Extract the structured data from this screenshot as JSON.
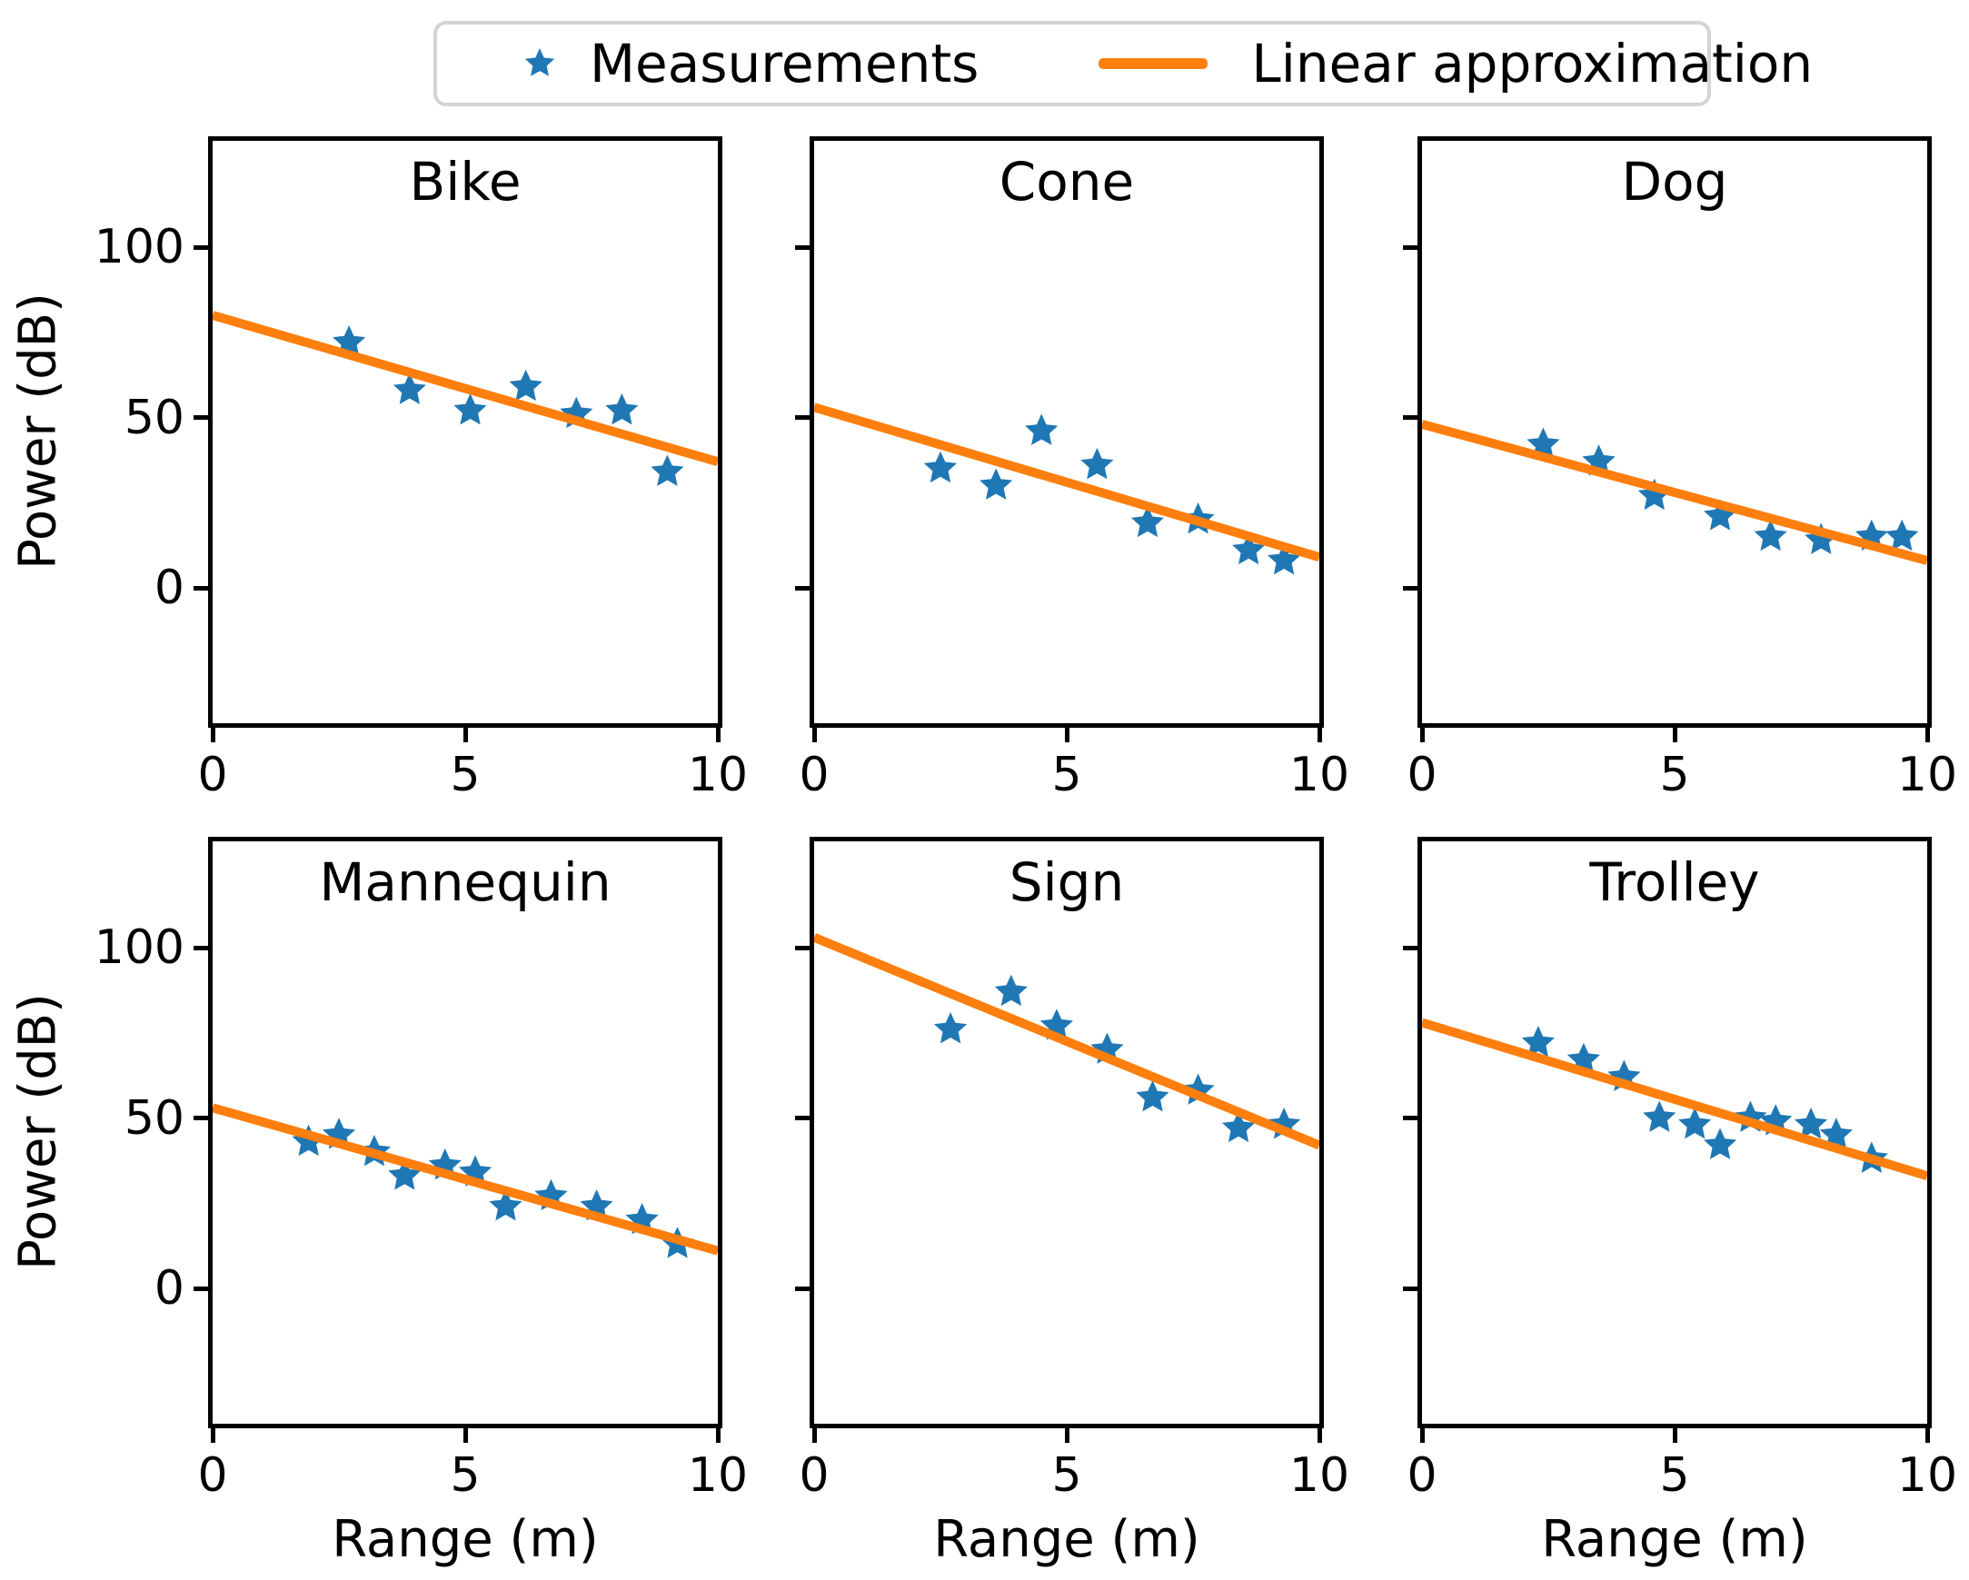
{
  "figure": {
    "background": "#ffffff",
    "colors": {
      "measurements": "#1f77b4",
      "fit_line": "#ff7f0e",
      "legend_border": "#d4d4d4",
      "axis": "#000000"
    },
    "legend": {
      "items": [
        {
          "label": "Measurements",
          "marker": "star-icon",
          "color": "#1f77b4"
        },
        {
          "label": "Linear approximation",
          "marker": "line-icon",
          "color": "#ff7f0e"
        }
      ]
    },
    "axes": {
      "xlabel": "Range (m)",
      "ylabel": "Power (dB)",
      "x_ticks": [
        0,
        5,
        10
      ],
      "y_ticks": [
        100,
        50,
        0
      ],
      "xlim": [
        0,
        10
      ],
      "ylim": [
        -40,
        131
      ],
      "grid": false,
      "legend_position": "top-center"
    }
  },
  "chart_data": [
    {
      "type": "scatter",
      "title": "Bike",
      "xlabel": "Range (m)",
      "ylabel": "Power (dB)",
      "series": [
        {
          "name": "Measurements",
          "x": [
            2.7,
            3.9,
            5.1,
            6.2,
            7.2,
            8.1,
            9.0
          ],
          "y": [
            72,
            58,
            52,
            59,
            51,
            52,
            34
          ]
        },
        {
          "name": "Linear approximation",
          "x": [
            0,
            10
          ],
          "y": [
            80,
            37
          ]
        }
      ]
    },
    {
      "type": "scatter",
      "title": "Cone",
      "xlabel": "Range (m)",
      "ylabel": "Power (dB)",
      "series": [
        {
          "name": "Measurements",
          "x": [
            2.5,
            3.6,
            4.5,
            5.6,
            6.6,
            7.6,
            8.6,
            9.3
          ],
          "y": [
            35,
            30,
            46,
            36,
            19,
            20,
            11,
            8
          ]
        },
        {
          "name": "Linear approximation",
          "x": [
            0,
            10
          ],
          "y": [
            53,
            9
          ]
        }
      ]
    },
    {
      "type": "scatter",
      "title": "Dog",
      "xlabel": "Range (m)",
      "ylabel": "Power (dB)",
      "series": [
        {
          "name": "Measurements",
          "x": [
            2.4,
            3.5,
            4.6,
            5.9,
            6.9,
            7.9,
            8.9,
            9.5
          ],
          "y": [
            42,
            37,
            27,
            21,
            15,
            14,
            15,
            15
          ]
        },
        {
          "name": "Linear approximation",
          "x": [
            0,
            10
          ],
          "y": [
            48,
            8
          ]
        }
      ]
    },
    {
      "type": "scatter",
      "title": "Mannequin",
      "xlabel": "Range (m)",
      "ylabel": "Power (dB)",
      "series": [
        {
          "name": "Measurements",
          "x": [
            1.9,
            2.5,
            3.2,
            3.8,
            4.6,
            5.2,
            5.8,
            6.7,
            7.6,
            8.5,
            9.2
          ],
          "y": [
            43,
            45,
            40,
            33,
            36,
            34,
            24,
            27,
            24,
            20,
            13
          ]
        },
        {
          "name": "Linear approximation",
          "x": [
            0,
            10
          ],
          "y": [
            53,
            11
          ]
        }
      ]
    },
    {
      "type": "scatter",
      "title": "Sign",
      "xlabel": "Range (m)",
      "ylabel": "Power (dB)",
      "series": [
        {
          "name": "Measurements",
          "x": [
            2.7,
            3.9,
            4.8,
            5.8,
            6.7,
            7.6,
            8.4,
            9.3
          ],
          "y": [
            76,
            87,
            77,
            70,
            56,
            58,
            47,
            48
          ]
        },
        {
          "name": "Linear approximation",
          "x": [
            0,
            10
          ],
          "y": [
            103,
            42
          ]
        }
      ]
    },
    {
      "type": "scatter",
      "title": "Trolley",
      "xlabel": "Range (m)",
      "ylabel": "Power (dB)",
      "series": [
        {
          "name": "Measurements",
          "x": [
            2.3,
            3.2,
            4.0,
            4.7,
            5.4,
            5.9,
            6.5,
            7.0,
            7.7,
            8.2,
            8.9
          ],
          "y": [
            72,
            67,
            62,
            50,
            48,
            42,
            50,
            49,
            48,
            45,
            38
          ]
        },
        {
          "name": "Linear approximation",
          "x": [
            0,
            10
          ],
          "y": [
            78,
            33
          ]
        }
      ]
    }
  ]
}
